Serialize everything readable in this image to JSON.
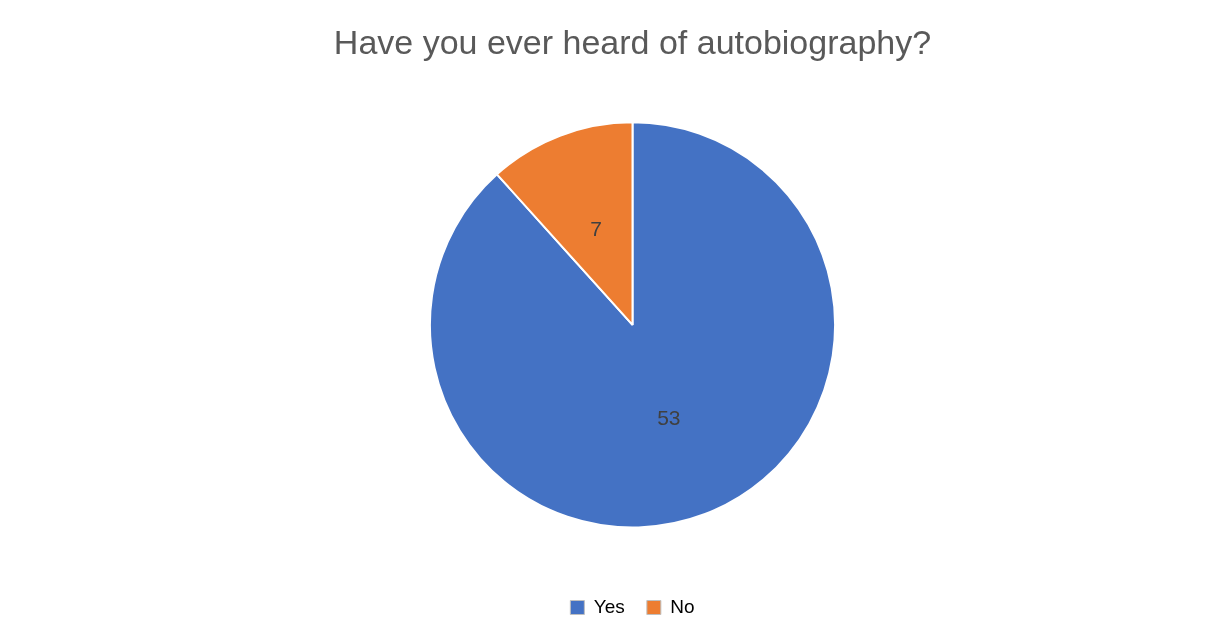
{
  "chart_data": {
    "type": "pie",
    "title": "Have you ever heard of autobiography?",
    "categories": [
      "Yes",
      "No"
    ],
    "values": [
      53,
      7
    ],
    "colors": [
      "#4472c4",
      "#ed7d31"
    ],
    "data_labels": true,
    "legend": "bottom"
  }
}
